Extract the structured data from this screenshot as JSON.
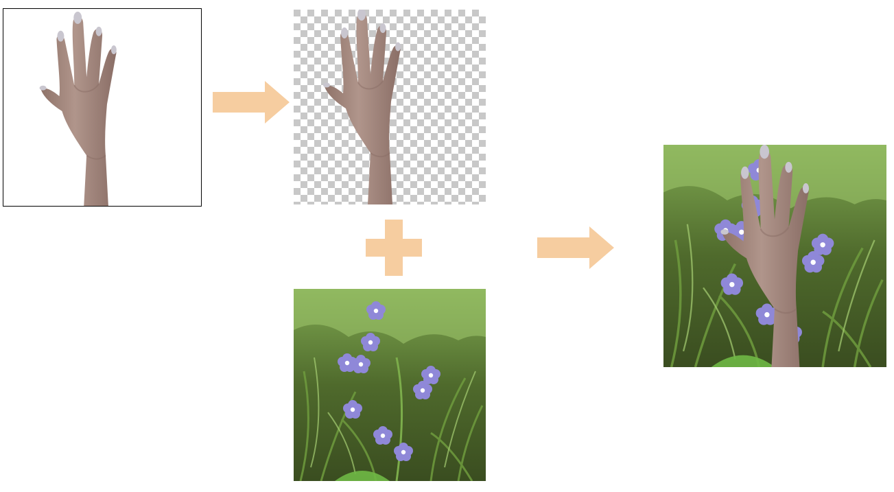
{
  "diagram": {
    "panels": [
      {
        "id": "original-hand",
        "icon": "hand-photo-icon"
      },
      {
        "id": "cutout-hand",
        "icon": "transparent-hand-icon"
      },
      {
        "id": "background-scene",
        "icon": "flower-photo-icon"
      },
      {
        "id": "composite-result",
        "icon": "composite-photo-icon"
      }
    ],
    "operators": [
      {
        "id": "arrow-1",
        "icon": "right-arrow-icon"
      },
      {
        "id": "plus",
        "icon": "plus-icon"
      },
      {
        "id": "arrow-2",
        "icon": "right-arrow-icon"
      }
    ],
    "colors": {
      "operator": "#f6cda0",
      "skin": "#a98d84",
      "skin_shadow": "#8a6e66",
      "nail": "#c9c6cf",
      "checker_dark": "#c8c8c8",
      "checker_light": "#ffffff",
      "foliage_dark": "#3b4a22",
      "foliage_light": "#8ab55a",
      "flower": "#8f88d8",
      "flower_center": "#ffffff",
      "panel_border": "#000000"
    }
  }
}
